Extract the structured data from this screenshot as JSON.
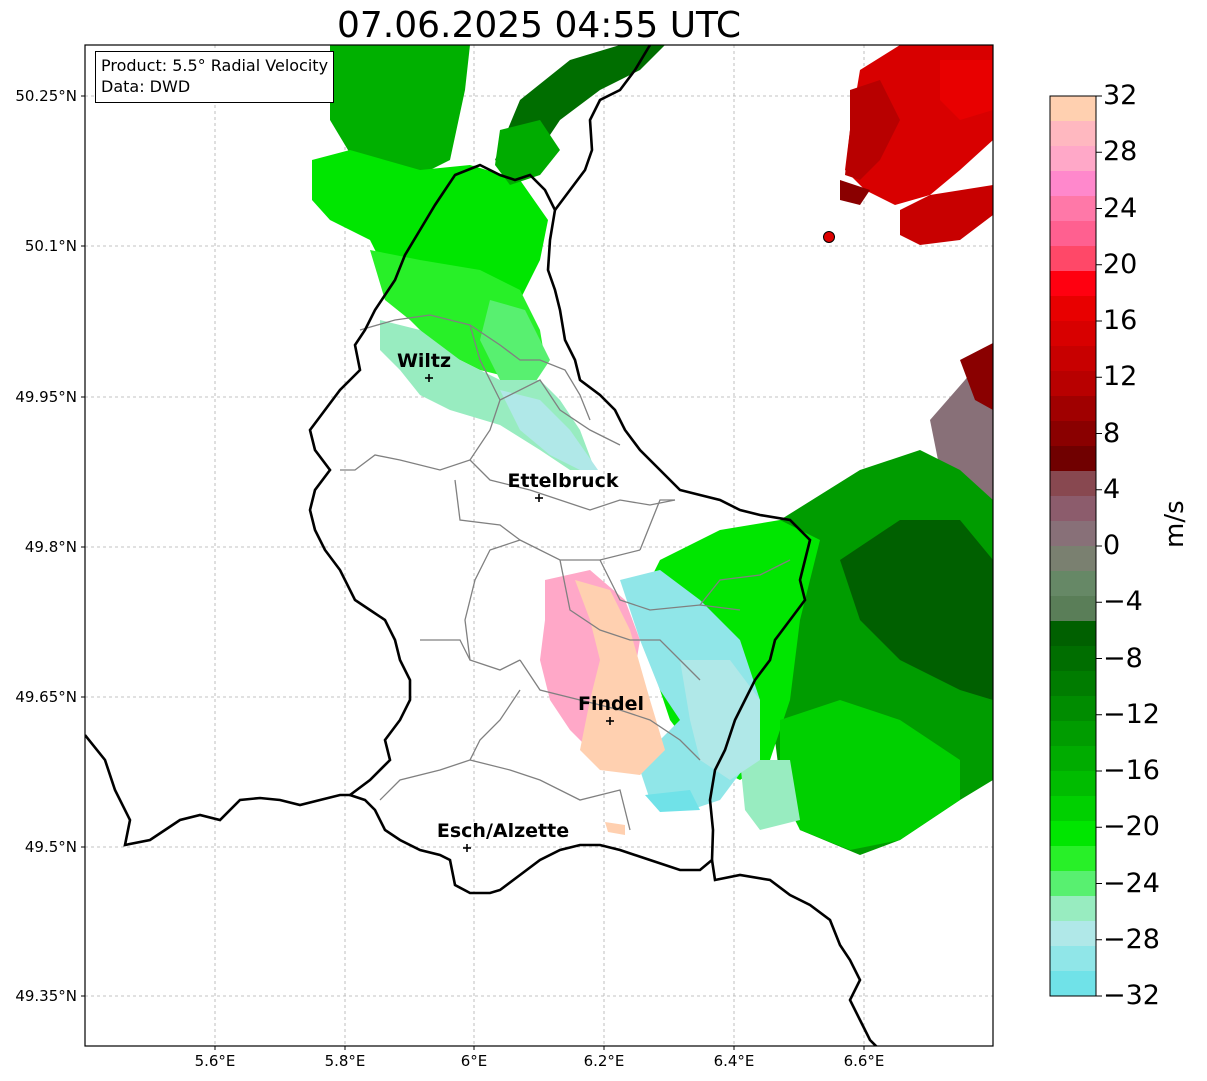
{
  "title": "07.06.2025 04:55 UTC",
  "product_box": {
    "line1": "Product: 5.5° Radial Velocity",
    "line2": "Data: DWD"
  },
  "map": {
    "lat_labels": [
      "50.25°N",
      "50.1°N",
      "49.95°N",
      "49.8°N",
      "49.65°N",
      "49.5°N",
      "49.35°N"
    ],
    "lon_labels": [
      "5.6°E",
      "5.8°E",
      "6°E",
      "6.2°E",
      "6.4°E",
      "6.6°E"
    ],
    "cities": [
      {
        "name": "Wiltz"
      },
      {
        "name": "Ettelbruck"
      },
      {
        "name": "Findel"
      },
      {
        "name": "Esch/Alzette"
      }
    ],
    "colors": {
      "border_national": "#000000",
      "border_canton": "#808080",
      "grid": "#b0b0b0",
      "radar_marker": "#dd0000"
    }
  },
  "colorbar": {
    "unit": "m/s",
    "tick_labels": [
      "32",
      "28",
      "24",
      "20",
      "16",
      "12",
      "8",
      "4",
      "0",
      "−4",
      "−8",
      "−12",
      "−16",
      "−20",
      "−24",
      "−28",
      "−32"
    ],
    "range": [
      -32,
      32
    ],
    "step": 2,
    "colors_top_to_bottom": [
      "#ffd0b0",
      "#ffb8c0",
      "#ffa8c8",
      "#ff88cc",
      "#ff78a8",
      "#ff6090",
      "#ff4868",
      "#ff0010",
      "#e80000",
      "#d80000",
      "#c80000",
      "#b80000",
      "#a00000",
      "#8a0000",
      "#700000",
      "#884850",
      "#8c5c6c",
      "#887078",
      "#7a8070",
      "#668866",
      "#5a7e58",
      "#006000",
      "#006e00",
      "#007c00",
      "#008c00",
      "#009c00",
      "#00ac00",
      "#00bc00",
      "#00d000",
      "#00e600",
      "#28f028",
      "#58f070",
      "#98ecc0",
      "#b0e8e8",
      "#90e6e8",
      "#70e2e8"
    ]
  }
}
